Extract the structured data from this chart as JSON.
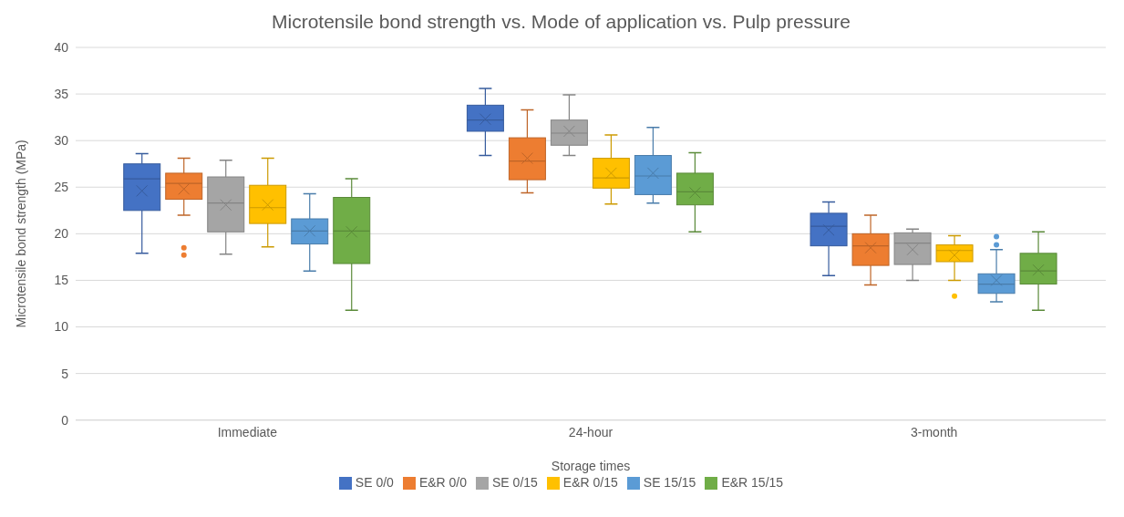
{
  "chart_data": {
    "type": "box",
    "title": "Microtensile bond strength vs. Mode of application vs. Pulp pressure",
    "xlabel": "Storage times",
    "ylabel": "Microtensile bond strength (MPa)",
    "categories": [
      "Immediate",
      "24-hour",
      "3-month"
    ],
    "ylim": [
      0,
      40
    ],
    "yticks": [
      0,
      5,
      10,
      15,
      20,
      25,
      30,
      35,
      40
    ],
    "grid": "y",
    "legend": "bottom",
    "series": [
      {
        "name": "SE 0/0",
        "color": "#4472c4",
        "boxes": [
          {
            "low": 17.9,
            "q1": 22.5,
            "median": 25.9,
            "q3": 27.5,
            "high": 28.6,
            "mean": 24.6
          },
          {
            "low": 28.4,
            "q1": 31.0,
            "median": 32.2,
            "q3": 33.8,
            "high": 35.6,
            "mean": 32.3
          },
          {
            "low": 15.5,
            "q1": 18.7,
            "median": 20.8,
            "q3": 22.2,
            "high": 23.4,
            "mean": 20.4
          }
        ]
      },
      {
        "name": "E&R 0/0",
        "color": "#ed7d31",
        "boxes": [
          {
            "low": 22.0,
            "q1": 23.7,
            "median": 25.4,
            "q3": 26.5,
            "high": 28.1,
            "mean": 24.8,
            "outliers": [
              18.5,
              17.7
            ]
          },
          {
            "low": 24.4,
            "q1": 25.8,
            "median": 27.8,
            "q3": 30.3,
            "high": 33.3,
            "mean": 28.1
          },
          {
            "low": 14.5,
            "q1": 16.6,
            "median": 18.7,
            "q3": 20.0,
            "high": 22.0,
            "mean": 18.5
          }
        ]
      },
      {
        "name": "SE 0/15",
        "color": "#a5a5a5",
        "boxes": [
          {
            "low": 17.8,
            "q1": 20.2,
            "median": 23.3,
            "q3": 26.1,
            "high": 27.9,
            "mean": 23.1
          },
          {
            "low": 28.4,
            "q1": 29.5,
            "median": 30.8,
            "q3": 32.2,
            "high": 34.9,
            "mean": 31.0
          },
          {
            "low": 15.0,
            "q1": 16.7,
            "median": 19.0,
            "q3": 20.1,
            "high": 20.5,
            "mean": 18.3
          }
        ]
      },
      {
        "name": "E&R 0/15",
        "color": "#ffc000",
        "boxes": [
          {
            "low": 18.6,
            "q1": 21.1,
            "median": 22.8,
            "q3": 25.2,
            "high": 28.1,
            "mean": 23.1
          },
          {
            "low": 23.2,
            "q1": 24.9,
            "median": 26.0,
            "q3": 28.1,
            "high": 30.6,
            "mean": 26.5
          },
          {
            "low": 15.0,
            "q1": 17.0,
            "median": 18.2,
            "q3": 18.8,
            "high": 19.8,
            "mean": 17.7,
            "outliers": [
              13.3
            ]
          }
        ]
      },
      {
        "name": "SE 15/15",
        "color": "#5b9bd5",
        "boxes": [
          {
            "low": 16.0,
            "q1": 18.9,
            "median": 20.3,
            "q3": 21.6,
            "high": 24.3,
            "mean": 20.3
          },
          {
            "low": 23.3,
            "q1": 24.2,
            "median": 26.2,
            "q3": 28.4,
            "high": 31.4,
            "mean": 26.5
          },
          {
            "low": 12.7,
            "q1": 13.6,
            "median": 14.6,
            "q3": 15.7,
            "high": 18.3,
            "mean": 15.0,
            "outliers": [
              19.7,
              18.8
            ]
          }
        ]
      },
      {
        "name": "E&R 15/15",
        "color": "#70ad47",
        "boxes": [
          {
            "low": 11.8,
            "q1": 16.8,
            "median": 20.3,
            "q3": 23.9,
            "high": 25.9,
            "mean": 20.2
          },
          {
            "low": 20.2,
            "q1": 23.1,
            "median": 24.5,
            "q3": 26.5,
            "high": 28.7,
            "mean": 24.4
          },
          {
            "low": 11.8,
            "q1": 14.6,
            "median": 16.0,
            "q3": 17.9,
            "high": 20.2,
            "mean": 16.1
          }
        ]
      }
    ]
  }
}
